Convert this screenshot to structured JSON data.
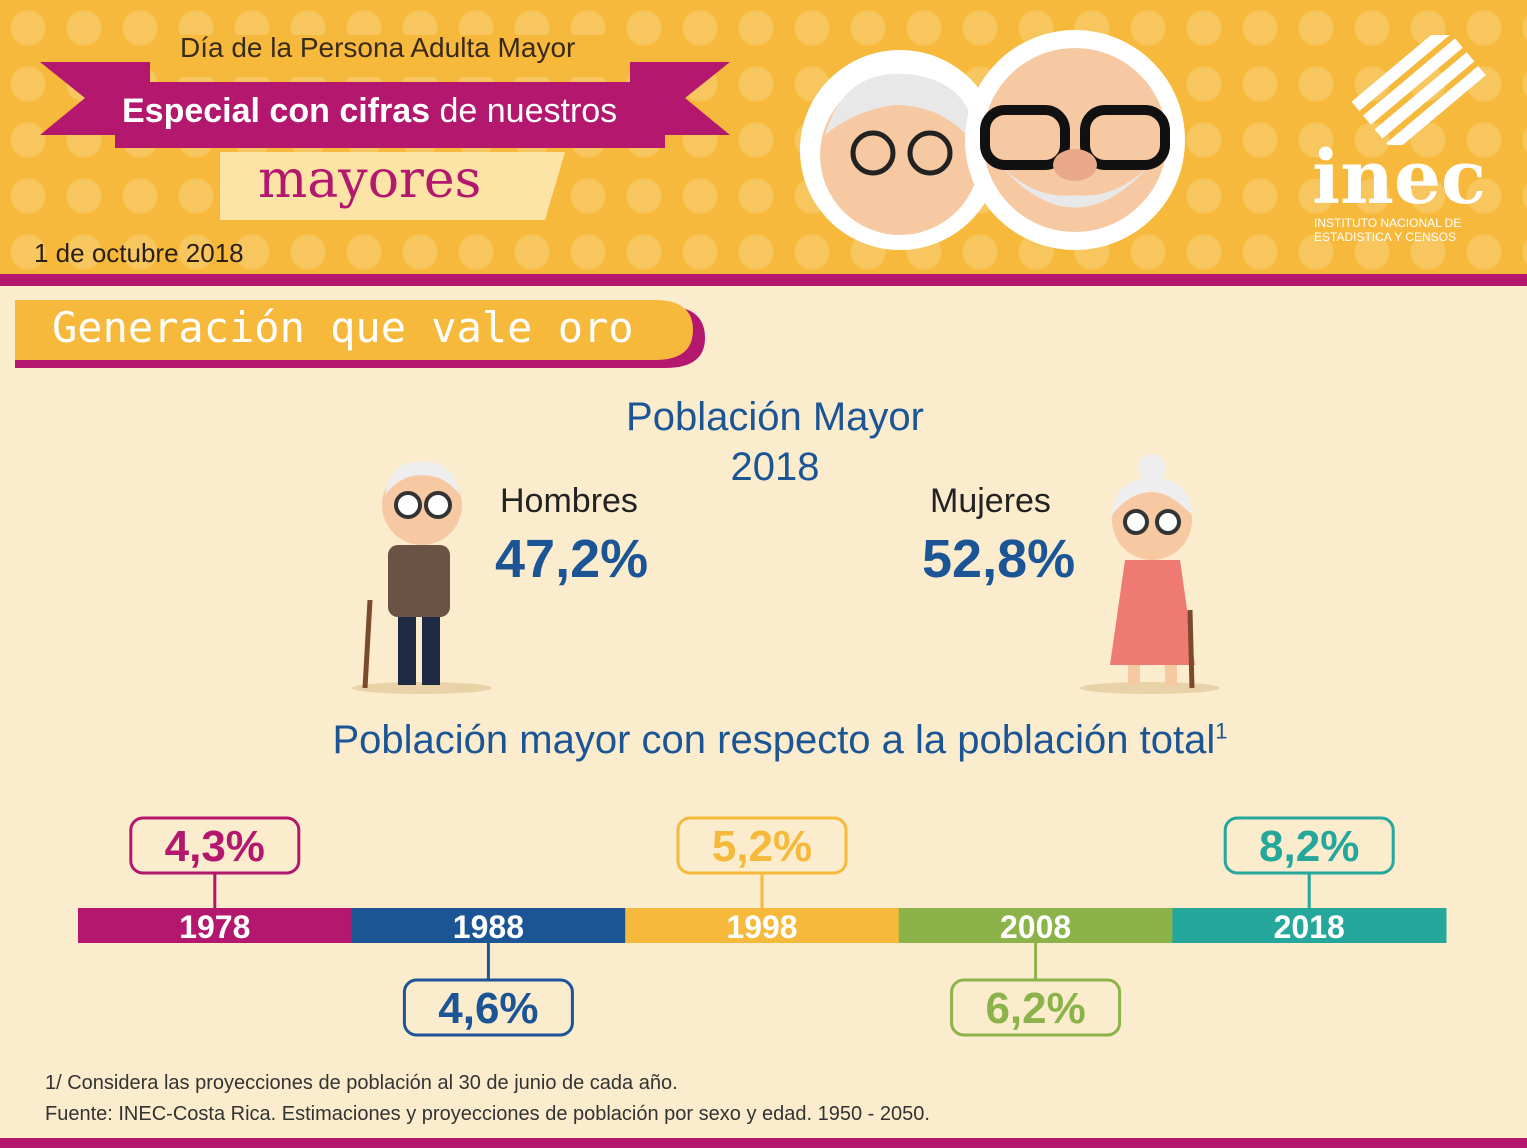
{
  "header": {
    "kicker": "Día de la Persona Adulta Mayor",
    "title_bold": "Especial con cifras",
    "title_rest": "de nuestros",
    "title_big": "mayores",
    "date": "1 de octubre 2018",
    "logo": "inec",
    "logo_sub1": "INSTITUTO NACIONAL DE",
    "logo_sub2": "ESTADISTICA Y CENSOS"
  },
  "section_title": "Generación que vale oro",
  "population": {
    "title": "Población Mayor",
    "year": "2018",
    "men": {
      "label": "Hombres",
      "value": "47,2%"
    },
    "women": {
      "label": "Mujeres",
      "value": "52,8%"
    }
  },
  "timeline": {
    "title": "Población mayor con respecto a la población total",
    "footnote_mark": "1",
    "items": [
      {
        "year": "1978",
        "value": "4,3%",
        "color": "#b3186e"
      },
      {
        "year": "1988",
        "value": "4,6%",
        "color": "#1b5596"
      },
      {
        "year": "1998",
        "value": "5,2%",
        "color": "#f6b93b"
      },
      {
        "year": "2008",
        "value": "6,2%",
        "color": "#8bb34a"
      },
      {
        "year": "2018",
        "value": "8,2%",
        "color": "#26a79b"
      }
    ]
  },
  "notes": [
    "1/ Considera las proyecciones de población al 30 de junio de cada año.",
    "Fuente: INEC-Costa Rica. Estimaciones y proyecciones de población por sexo y edad. 1950 - 2050."
  ]
}
